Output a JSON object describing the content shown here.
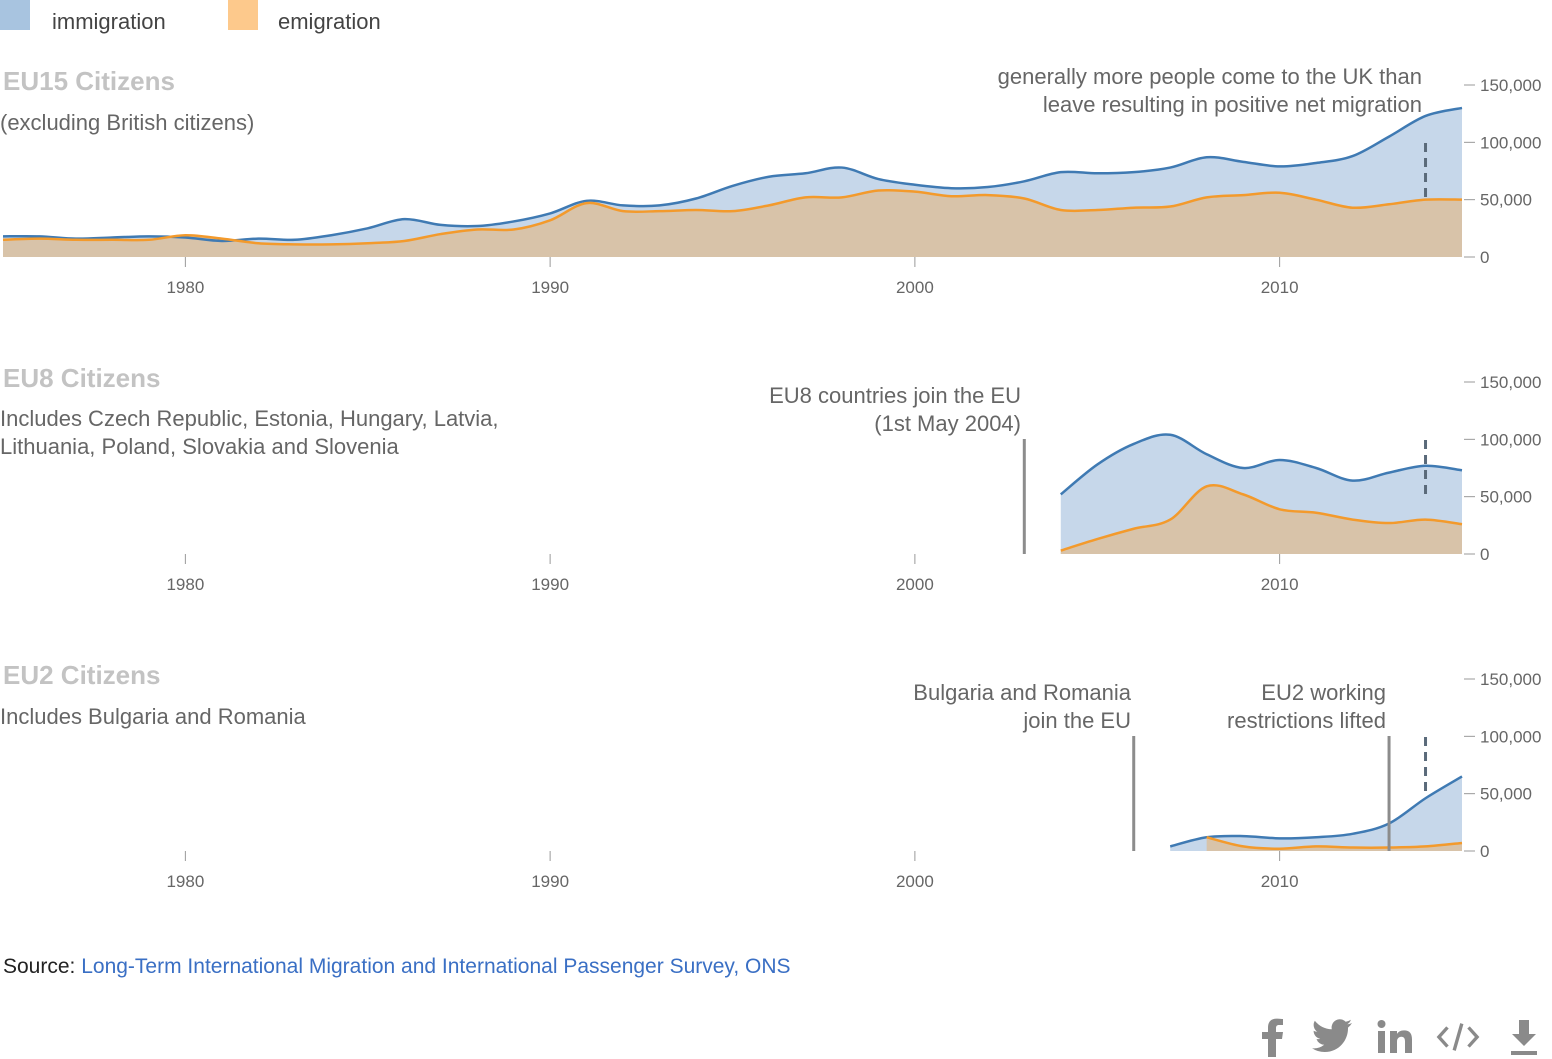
{
  "legend": [
    {
      "label": "immigration",
      "color": "#a8c4e0"
    },
    {
      "label": "emigration",
      "color": "#fdc98c"
    }
  ],
  "colors": {
    "immigration_line": "#3f7ab3",
    "immigration_area": "#c6d7ea",
    "emigration_line": "#f39a2c",
    "emigration_area": "#d8c3a9",
    "annotation_line": "#8c8c8c"
  },
  "panels": [
    {
      "title": "EU15 Citizens",
      "description": "(excluding British citizens)",
      "annotations": [
        {
          "text": [
            "generally more people come to the UK than",
            "leave resulting in positive net migration"
          ],
          "marker_year": 2014,
          "style": "dashed"
        }
      ]
    },
    {
      "title": "EU8 Citizens",
      "description": "Includes Czech Republic, Estonia, Hungary, Latvia, Lithuania, Poland, Slovakia and Slovenia",
      "annotations": [
        {
          "text": [
            "EU8 countries join the EU",
            "(1st May 2004)"
          ],
          "marker_year": 2003,
          "style": "solid"
        },
        {
          "text": [],
          "marker_year": 2014,
          "style": "dashed"
        }
      ]
    },
    {
      "title": "EU2 Citizens",
      "description": "Includes Bulgaria and Romania",
      "annotations": [
        {
          "text": [
            "Bulgaria and Romania",
            "join the EU"
          ],
          "marker_year": 2006,
          "style": "solid"
        },
        {
          "text": [
            "EU2 working",
            "restrictions lifted"
          ],
          "marker_year": 2013,
          "style": "solid"
        },
        {
          "text": [],
          "marker_year": 2014,
          "style": "dashed"
        }
      ]
    }
  ],
  "chart_data": [
    {
      "type": "area",
      "title": "EU15 Citizens",
      "subtitle": "(excluding British citizens)",
      "x_ticks": [
        1980,
        1990,
        2000,
        2010
      ],
      "y_ticks": [
        "0",
        "50,000",
        "100,000",
        "150,000"
      ],
      "xlim": [
        1975,
        2015
      ],
      "ylim": [
        0,
        150000
      ],
      "grid": false,
      "legend_position": "top-left",
      "x": [
        1975,
        1976,
        1977,
        1978,
        1979,
        1980,
        1981,
        1982,
        1983,
        1984,
        1985,
        1986,
        1987,
        1988,
        1989,
        1990,
        1991,
        1992,
        1993,
        1994,
        1995,
        1996,
        1997,
        1998,
        1999,
        2000,
        2001,
        2002,
        2003,
        2004,
        2005,
        2006,
        2007,
        2008,
        2009,
        2010,
        2011,
        2012,
        2013,
        2014,
        2015
      ],
      "series": [
        {
          "name": "immigration",
          "values": [
            18000,
            18000,
            16000,
            17000,
            18000,
            17000,
            14000,
            16000,
            15000,
            19000,
            25000,
            33000,
            28000,
            27000,
            31000,
            38000,
            49000,
            45000,
            45000,
            51000,
            62000,
            70000,
            73000,
            78000,
            68000,
            63000,
            60000,
            61000,
            66000,
            74000,
            73000,
            74000,
            78000,
            87000,
            83000,
            79000,
            82000,
            88000,
            105000,
            123000,
            130000
          ]
        },
        {
          "name": "emigration",
          "values": [
            15000,
            16000,
            15000,
            15000,
            15000,
            19000,
            16000,
            12000,
            11000,
            11000,
            12000,
            14000,
            20000,
            24000,
            24000,
            32000,
            47000,
            40000,
            40000,
            41000,
            40000,
            45000,
            52000,
            52000,
            58000,
            57000,
            53000,
            54000,
            51000,
            41000,
            41000,
            43000,
            44000,
            52000,
            54000,
            56000,
            50000,
            43000,
            46000,
            50000,
            50000
          ]
        }
      ]
    },
    {
      "type": "area",
      "title": "EU8 Citizens",
      "subtitle": "Includes Czech Republic, Estonia, Hungary, Latvia, Lithuania, Poland, Slovakia and Slovenia",
      "x_ticks": [
        1980,
        1990,
        2000,
        2010
      ],
      "y_ticks": [
        "0",
        "50,000",
        "100,000",
        "150,000"
      ],
      "xlim": [
        1975,
        2015
      ],
      "ylim": [
        0,
        150000
      ],
      "grid": false,
      "x": [
        2004,
        2005,
        2006,
        2007,
        2008,
        2009,
        2010,
        2011,
        2012,
        2013,
        2014,
        2015
      ],
      "series": [
        {
          "name": "immigration",
          "values": [
            52000,
            78000,
            96000,
            104000,
            87000,
            75000,
            82000,
            75000,
            64000,
            71000,
            77000,
            73000
          ]
        },
        {
          "name": "emigration",
          "values": [
            3000,
            13000,
            22000,
            30000,
            59000,
            52000,
            39000,
            36000,
            30000,
            27000,
            30000,
            26000
          ]
        }
      ]
    },
    {
      "type": "area",
      "title": "EU2 Citizens",
      "subtitle": "Includes Bulgaria and Romania",
      "x_ticks": [
        1980,
        1990,
        2000,
        2010
      ],
      "y_ticks": [
        "0",
        "50,000",
        "100,000",
        "150,000"
      ],
      "xlim": [
        1975,
        2015
      ],
      "ylim": [
        0,
        150000
      ],
      "grid": false,
      "x": [
        2007,
        2008,
        2009,
        2010,
        2011,
        2012,
        2013,
        2014,
        2015
      ],
      "series": [
        {
          "name": "immigration",
          "values": [
            4000,
            12000,
            13000,
            11000,
            12000,
            15000,
            24000,
            46000,
            65000
          ]
        },
        {
          "name": "emigration",
          "values": [
            null,
            12000,
            4000,
            2000,
            4000,
            3000,
            3000,
            4000,
            7000
          ]
        }
      ]
    }
  ],
  "source": {
    "prefix": "Source: ",
    "link_text": "Long-Term International Migration and International Passenger Survey, ONS"
  },
  "share_icons": [
    "facebook-icon",
    "twitter-icon",
    "linkedin-icon",
    "embed-code-icon",
    "download-icon"
  ]
}
